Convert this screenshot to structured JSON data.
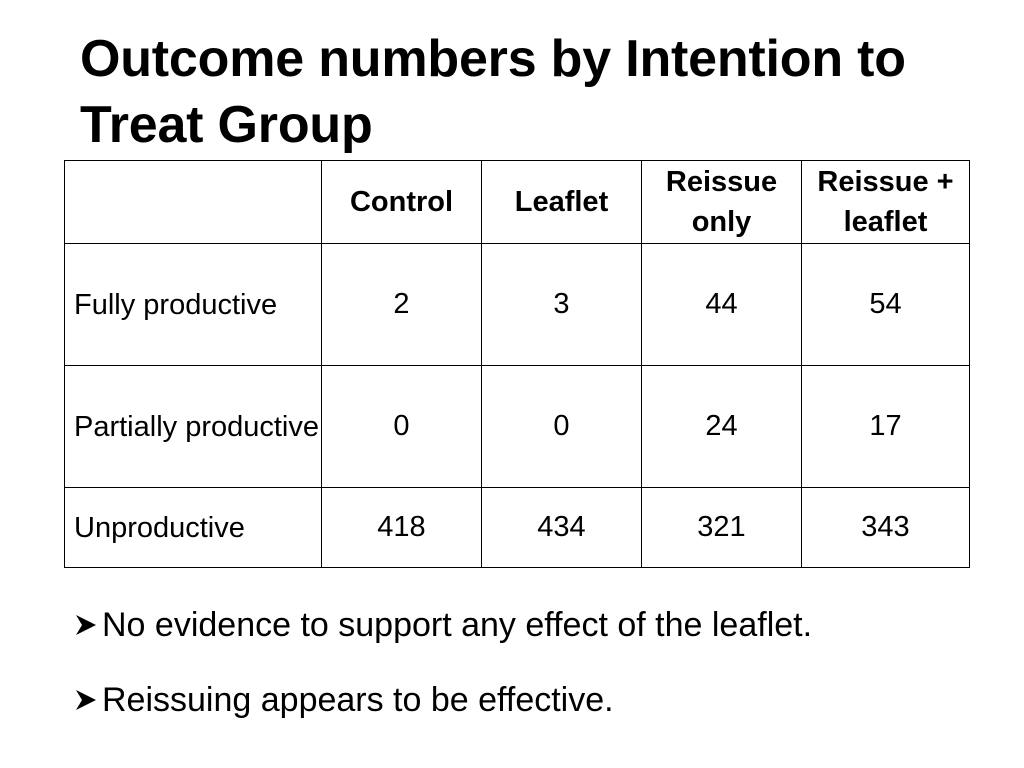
{
  "slide": {
    "title": "Outcome numbers by Intention to Treat Group"
  },
  "table": {
    "corner": "",
    "columns": [
      {
        "label": "Control"
      },
      {
        "label": "Leaflet"
      },
      {
        "label": "Reissue only"
      },
      {
        "label": "Reissue + leaflet"
      }
    ],
    "rows": [
      {
        "label": "Fully productive",
        "values": [
          "2",
          "3",
          "44",
          "54"
        ]
      },
      {
        "label": "Partially productive",
        "values": [
          "0",
          "0",
          "24",
          "17"
        ]
      },
      {
        "label": "Unproductive",
        "values": [
          "418",
          "434",
          "321",
          "343"
        ]
      }
    ]
  },
  "bullets": [
    {
      "icon": "arrow-bullet-icon",
      "text": "No evidence to support any effect of the leaflet."
    },
    {
      "icon": "arrow-bullet-icon",
      "text": "Reissuing appears to be effective."
    }
  ]
}
